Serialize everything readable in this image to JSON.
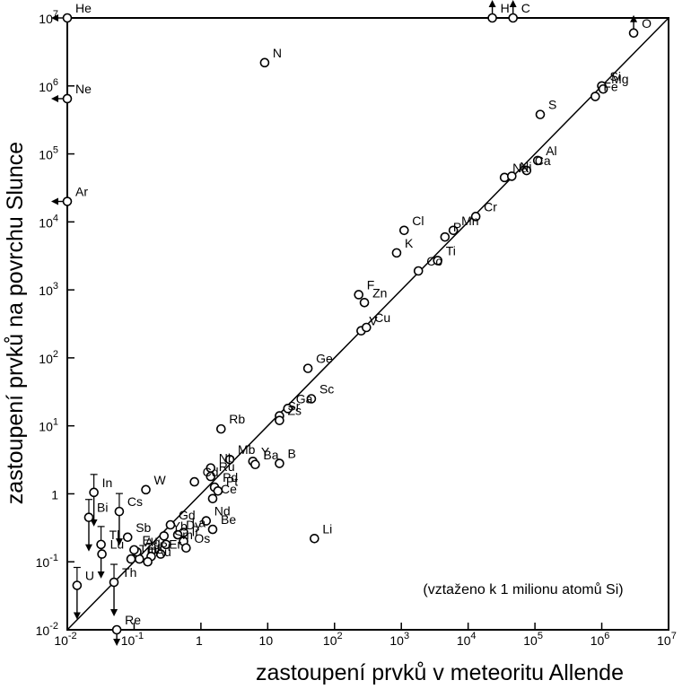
{
  "chart_data": {
    "type": "scatter",
    "scale": "log-log",
    "title": "",
    "xlabel": "zastoupení prvků v meteoritu Allende",
    "ylabel": "zastoupení prvků na povrchu Slunce",
    "note": "(vztaženo k 1 milionu atomů Si)",
    "xlim": [
      0.01,
      10000000
    ],
    "ylim": [
      0.01,
      10000000
    ],
    "grid": false,
    "reference_line": "y = x",
    "x_ticks": [
      {
        "v": 0.01,
        "base": "10",
        "exp": "-2"
      },
      {
        "v": 0.1,
        "base": "10",
        "exp": "-1"
      },
      {
        "v": 1,
        "base": "1",
        "exp": ""
      },
      {
        "v": 10,
        "base": "10",
        "exp": ""
      },
      {
        "v": 100,
        "base": "10",
        "exp": "2"
      },
      {
        "v": 1000,
        "base": "10",
        "exp": "3"
      },
      {
        "v": 10000,
        "base": "10",
        "exp": "4"
      },
      {
        "v": 100000,
        "base": "10",
        "exp": "5"
      },
      {
        "v": 1000000,
        "base": "10",
        "exp": "6"
      },
      {
        "v": 10000000,
        "base": "10",
        "exp": "7"
      }
    ],
    "y_ticks": [
      {
        "v": 0.01,
        "base": "10",
        "exp": "-2"
      },
      {
        "v": 0.1,
        "base": "10",
        "exp": "-1"
      },
      {
        "v": 1,
        "base": "1",
        "exp": ""
      },
      {
        "v": 10,
        "base": "10",
        "exp": "1"
      },
      {
        "v": 100,
        "base": "10",
        "exp": "2"
      },
      {
        "v": 1000,
        "base": "10",
        "exp": "3"
      },
      {
        "v": 10000,
        "base": "10",
        "exp": "4"
      },
      {
        "v": 100000,
        "base": "10",
        "exp": "5"
      },
      {
        "v": 1000000,
        "base": "10",
        "exp": "6"
      },
      {
        "v": 10000000,
        "base": "10",
        "exp": "7"
      }
    ],
    "points": [
      {
        "label": "He",
        "x": 0.01,
        "y": 10000000,
        "bound": "x-upper"
      },
      {
        "label": "H",
        "x": 23000,
        "y": 10000000,
        "bound": "y-above"
      },
      {
        "label": "C",
        "x": 47000,
        "y": 10000000,
        "bound": "y-above"
      },
      {
        "label": "O",
        "x": 3000000,
        "y": 6000000,
        "bound": "y-above"
      },
      {
        "label": "N",
        "x": 9,
        "y": 2200000
      },
      {
        "label": "Ne",
        "x": 0.01,
        "y": 650000,
        "bound": "x-upper"
      },
      {
        "label": "Si",
        "x": 1000000,
        "y": 1000000
      },
      {
        "label": "Fe",
        "x": 800000,
        "y": 700000
      },
      {
        "label": "Mg",
        "x": 1050000,
        "y": 900000
      },
      {
        "label": "S",
        "x": 120000,
        "y": 380000
      },
      {
        "label": "Al",
        "x": 110000,
        "y": 80000
      },
      {
        "label": "Ca",
        "x": 75000,
        "y": 57000
      },
      {
        "label": "Na",
        "x": 35000,
        "y": 45000
      },
      {
        "label": "Ni",
        "x": 45000,
        "y": 47000
      },
      {
        "label": "Ar",
        "x": 0.01,
        "y": 20000,
        "bound": "x-upper"
      },
      {
        "label": "Cr",
        "x": 13000,
        "y": 12000
      },
      {
        "label": "Cl",
        "x": 1100,
        "y": 7500
      },
      {
        "label": "Mn",
        "x": 6000,
        "y": 7500
      },
      {
        "label": "P",
        "x": 4500,
        "y": 6000
      },
      {
        "label": "K",
        "x": 850,
        "y": 3500
      },
      {
        "label": "Ti",
        "x": 3500,
        "y": 2700
      },
      {
        "label": "Co",
        "x": 1800,
        "y": 1900
      },
      {
        "label": "F",
        "x": 230,
        "y": 850
      },
      {
        "label": "Zn",
        "x": 280,
        "y": 650
      },
      {
        "label": "V",
        "x": 250,
        "y": 250
      },
      {
        "label": "Cu",
        "x": 300,
        "y": 280
      },
      {
        "label": "Ge",
        "x": 40,
        "y": 70
      },
      {
        "label": "Sc",
        "x": 45,
        "y": 25
      },
      {
        "label": "Ga",
        "x": 20,
        "y": 18
      },
      {
        "label": "Sr",
        "x": 15,
        "y": 14
      },
      {
        "label": "Zs",
        "x": 15,
        "y": 12
      },
      {
        "label": "Rb",
        "x": 2,
        "y": 9
      },
      {
        "label": "Y",
        "x": 6,
        "y": 3
      },
      {
        "label": "B",
        "x": 15,
        "y": 2.8
      },
      {
        "label": "Ba",
        "x": 6.5,
        "y": 2.7
      },
      {
        "label": "Mb",
        "x": 2.7,
        "y": 3.2
      },
      {
        "label": "Nb",
        "x": 1.4,
        "y": 2.4
      },
      {
        "label": "Ru",
        "x": 1.4,
        "y": 1.8
      },
      {
        "label": "Cd",
        "x": 0.8,
        "y": 1.5
      },
      {
        "label": "Pd",
        "x": 1.6,
        "y": 1.25
      },
      {
        "label": "Pt",
        "x": 1.8,
        "y": 1.1
      },
      {
        "label": "Ce",
        "x": 1.5,
        "y": 0.85
      },
      {
        "label": "W",
        "x": 0.15,
        "y": 1.15
      },
      {
        "label": "In",
        "x": 0.025,
        "y": 1.05,
        "bound": "y-upper"
      },
      {
        "label": "Bi",
        "x": 0.021,
        "y": 0.45,
        "bound": "y-upper"
      },
      {
        "label": "Cs",
        "x": 0.06,
        "y": 0.55,
        "bound": "y-upper"
      },
      {
        "label": "Sb",
        "x": 0.08,
        "y": 0.23
      },
      {
        "label": "Gd",
        "x": 0.35,
        "y": 0.35
      },
      {
        "label": "Nd",
        "x": 1.2,
        "y": 0.4
      },
      {
        "label": "Yb",
        "x": 0.28,
        "y": 0.24
      },
      {
        "label": "Be",
        "x": 1.5,
        "y": 0.3
      },
      {
        "label": "Tl",
        "x": 0.032,
        "y": 0.18,
        "bound": "y-upper"
      },
      {
        "label": "Lu",
        "x": 0.033,
        "y": 0.13
      },
      {
        "label": "La",
        "x": 0.55,
        "y": 0.27
      },
      {
        "label": "Dy",
        "x": 0.45,
        "y": 0.25
      },
      {
        "label": "Ir",
        "x": 0.55,
        "y": 0.2
      },
      {
        "label": "Os",
        "x": 0.6,
        "y": 0.16
      },
      {
        "label": "Sm",
        "x": 0.3,
        "y": 0.18
      },
      {
        "label": "Er",
        "x": 0.25,
        "y": 0.13
      },
      {
        "label": "Pr",
        "x": 0.18,
        "y": 0.12
      },
      {
        "label": "Au",
        "x": 0.16,
        "y": 0.1
      },
      {
        "label": "Hf",
        "x": 0.12,
        "y": 0.11
      },
      {
        "label": "Ag",
        "x": 0.11,
        "y": 0.14
      },
      {
        "label": "Eu",
        "x": 0.1,
        "y": 0.15
      },
      {
        "label": "Tm",
        "x": 0.09,
        "y": 0.11
      },
      {
        "label": "Th",
        "x": 0.05,
        "y": 0.05,
        "bound": "y-upper"
      },
      {
        "label": "U",
        "x": 0.014,
        "y": 0.045,
        "bound": "y-upper"
      },
      {
        "label": "Re",
        "x": 0.055,
        "y": 0.01,
        "bound": "y-lower"
      },
      {
        "label": "Li",
        "x": 50,
        "y": 0.22
      }
    ]
  }
}
